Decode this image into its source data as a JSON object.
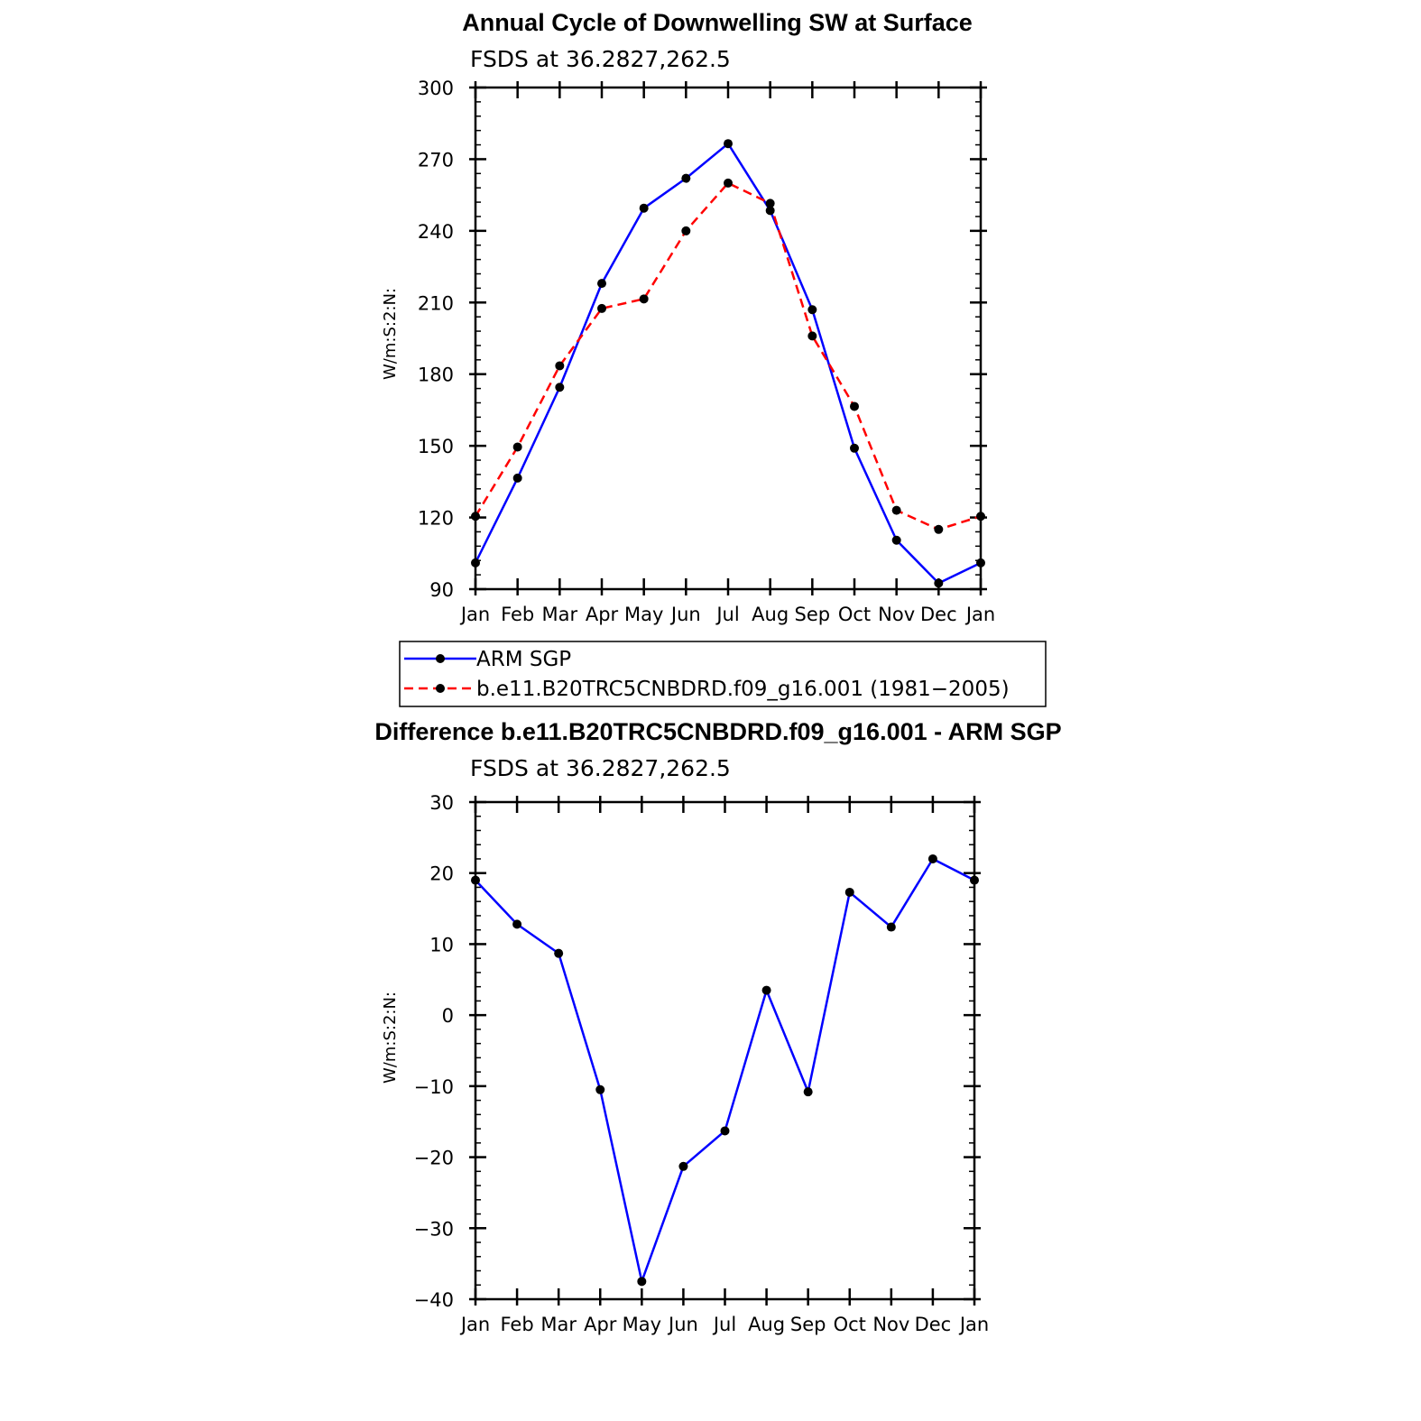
{
  "chart_data": [
    {
      "type": "line",
      "title": "Annual Cycle of Downwelling SW at Surface",
      "subtitle": "FSDS at 36.2827,262.5",
      "ylabel": "W/m:S:2:N:",
      "xlabel": "",
      "categories": [
        "Jan",
        "Feb",
        "Mar",
        "Apr",
        "May",
        "Jun",
        "Jul",
        "Aug",
        "Sep",
        "Oct",
        "Nov",
        "Dec",
        "Jan"
      ],
      "ylim": [
        90,
        300
      ],
      "yticks": [
        90,
        120,
        150,
        180,
        210,
        240,
        270,
        300
      ],
      "series": [
        {
          "name": "ARM SGP",
          "color": "#0000ff",
          "dash": "solid",
          "values": [
            101,
            136.5,
            174.5,
            218,
            249.5,
            262,
            276.5,
            248.5,
            207,
            149,
            110.5,
            92.5,
            101
          ]
        },
        {
          "name": "b.e11.B20TRC5CNBDRD.f09_g16.001 (1981−2005)",
          "color": "#ff0000",
          "dash": "dashed",
          "values": [
            120.5,
            149.5,
            183.5,
            207.5,
            211.5,
            240,
            260,
            251.5,
            196,
            166.5,
            123,
            115,
            120.5
          ]
        }
      ],
      "legend": "below"
    },
    {
      "type": "line",
      "title": "Difference b.e11.B20TRC5CNBDRD.f09_g16.001 - ARM SGP",
      "subtitle": "FSDS at 36.2827,262.5",
      "ylabel": "W/m:S:2:N:",
      "xlabel": "",
      "categories": [
        "Jan",
        "Feb",
        "Mar",
        "Apr",
        "May",
        "Jun",
        "Jul",
        "Aug",
        "Sep",
        "Oct",
        "Nov",
        "Dec",
        "Jan"
      ],
      "ylim": [
        -40,
        30
      ],
      "yticks": [
        -40,
        -30,
        -20,
        -10,
        0,
        10,
        20,
        30
      ],
      "ytick_labels": [
        "−40",
        "−30",
        "−20",
        "−10",
        "0",
        "10",
        "20",
        "30"
      ],
      "series": [
        {
          "color": "#0000ff",
          "dash": "solid",
          "values": [
            19,
            12.8,
            8.7,
            -10.5,
            -37.5,
            -21.3,
            -16.3,
            3.5,
            -10.8,
            17.3,
            12.4,
            22,
            19
          ]
        }
      ]
    }
  ]
}
